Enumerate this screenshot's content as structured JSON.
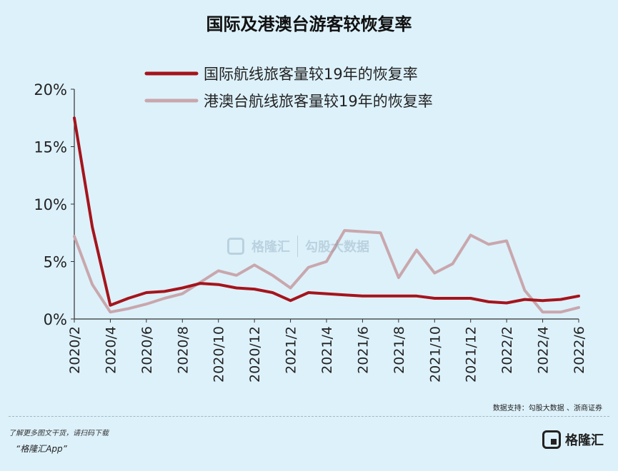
{
  "title": "国际及港澳台游客较恢复率",
  "source": "数据支持：勾股大数据 、浙商证券",
  "footer": {
    "note": "了解更多图文干货，请扫码下载",
    "app": "“格隆汇App”",
    "brand": "格隆汇"
  },
  "watermark": {
    "left": "格隆汇",
    "right": "勾股大数据"
  },
  "colors": {
    "international": "#a5141c",
    "hkmt": "#c9a7ad",
    "background": "#ddf1fa",
    "axis": "#333333"
  },
  "chart_data": {
    "type": "line",
    "title": "国际及港澳台游客较恢复率",
    "xlabel": "",
    "ylabel": "",
    "ylim": [
      0,
      20
    ],
    "y_ticks": [
      0,
      5,
      10,
      15,
      20
    ],
    "y_tick_labels": [
      "0%",
      "5%",
      "10%",
      "15%",
      "20%"
    ],
    "x_ticks": [
      "2020/2",
      "2020/4",
      "2020/6",
      "2020/8",
      "2020/10",
      "2020/12",
      "2021/2",
      "2021/4",
      "2021/6",
      "2021/8",
      "2021/10",
      "2021/12",
      "2022/2",
      "2022/4",
      "2022/6"
    ],
    "x_range": [
      "2020-02-01",
      "2022-06-01"
    ],
    "legend_position": "top-right",
    "grid": false,
    "series": [
      {
        "name": "国际航线旅客量较19年的恢复率",
        "color": "#a5141c",
        "x": [
          "2020-02-01",
          "2020-03-01",
          "2020-04-01",
          "2020-05-01",
          "2020-06-01",
          "2020-07-01",
          "2020-08-01",
          "2020-09-01",
          "2020-10-01",
          "2020-11-01",
          "2020-12-01",
          "2021-01-01",
          "2021-02-01",
          "2021-03-01",
          "2021-04-01",
          "2021-05-01",
          "2021-06-01",
          "2021-07-01",
          "2021-08-01",
          "2021-09-01",
          "2021-10-01",
          "2021-11-01",
          "2021-12-01",
          "2022-01-01",
          "2022-02-01",
          "2022-03-01",
          "2022-04-01",
          "2022-05-01",
          "2022-06-01"
        ],
        "values": [
          17.5,
          8.0,
          1.2,
          1.8,
          2.3,
          2.4,
          2.7,
          3.1,
          3.0,
          2.7,
          2.6,
          2.3,
          1.6,
          2.3,
          2.2,
          2.1,
          2.0,
          2.0,
          2.0,
          2.0,
          1.8,
          1.8,
          1.8,
          1.5,
          1.4,
          1.7,
          1.6,
          1.7,
          2.0
        ]
      },
      {
        "name": "港澳台航线旅客量较19年的恢复率",
        "color": "#c9a7ad",
        "x": [
          "2020-02-01",
          "2020-03-01",
          "2020-04-01",
          "2020-05-01",
          "2020-06-01",
          "2020-07-01",
          "2020-08-01",
          "2020-09-01",
          "2020-10-01",
          "2020-11-01",
          "2020-12-01",
          "2021-01-01",
          "2021-02-01",
          "2021-03-01",
          "2021-04-01",
          "2021-05-01",
          "2021-06-01",
          "2021-07-01",
          "2021-08-01",
          "2021-09-01",
          "2021-10-01",
          "2021-11-01",
          "2021-12-01",
          "2022-01-01",
          "2022-02-01",
          "2022-03-01",
          "2022-04-01",
          "2022-05-01",
          "2022-06-01"
        ],
        "values": [
          7.2,
          3.0,
          0.6,
          0.9,
          1.3,
          1.8,
          2.2,
          3.2,
          4.2,
          3.8,
          4.7,
          3.8,
          2.7,
          4.5,
          5.0,
          7.7,
          7.6,
          7.5,
          3.6,
          6.0,
          4.0,
          4.8,
          7.3,
          6.5,
          6.8,
          2.5,
          0.6,
          0.6,
          1.0
        ]
      }
    ]
  }
}
